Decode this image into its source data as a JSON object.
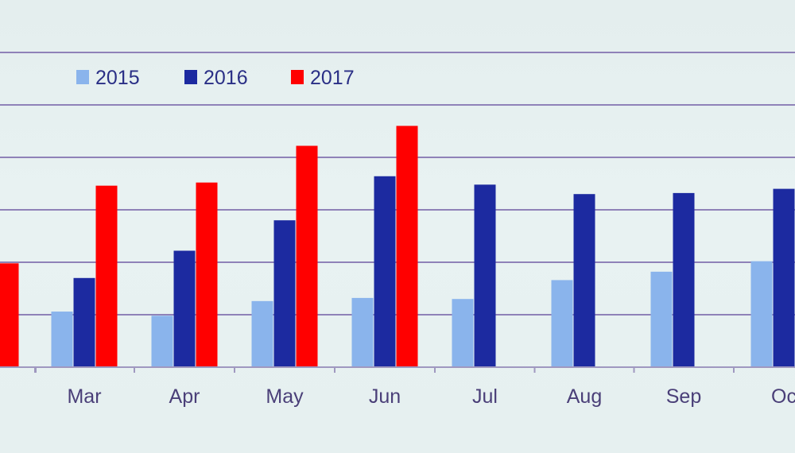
{
  "chart_data": {
    "type": "bar",
    "categories": [
      "Feb",
      "Mar",
      "Apr",
      "May",
      "Jun",
      "Jul",
      "Aug",
      "Sep",
      "Oct"
    ],
    "visible_category_text": [
      "b",
      "Mar",
      "Apr",
      "May",
      "Jun",
      "Jul",
      "Aug",
      "Sep",
      "Oc"
    ],
    "series": [
      {
        "name": "2015",
        "color": "#8ab4ec",
        "values": [
          null,
          0.53,
          0.49,
          0.63,
          0.66,
          0.65,
          0.83,
          0.91,
          1.01
        ]
      },
      {
        "name": "2016",
        "color": "#1c2aa0",
        "values": [
          null,
          0.85,
          1.11,
          1.4,
          1.82,
          1.74,
          1.65,
          1.66,
          1.7
        ]
      },
      {
        "name": "2017",
        "color": "#ff0000",
        "values": [
          0.99,
          1.73,
          1.76,
          2.11,
          2.3,
          null,
          null,
          null,
          null
        ]
      }
    ],
    "ylim": [
      0,
      3
    ],
    "grid": true,
    "legend_position": "top-left",
    "title": "",
    "xlabel": "",
    "ylabel": ""
  }
}
